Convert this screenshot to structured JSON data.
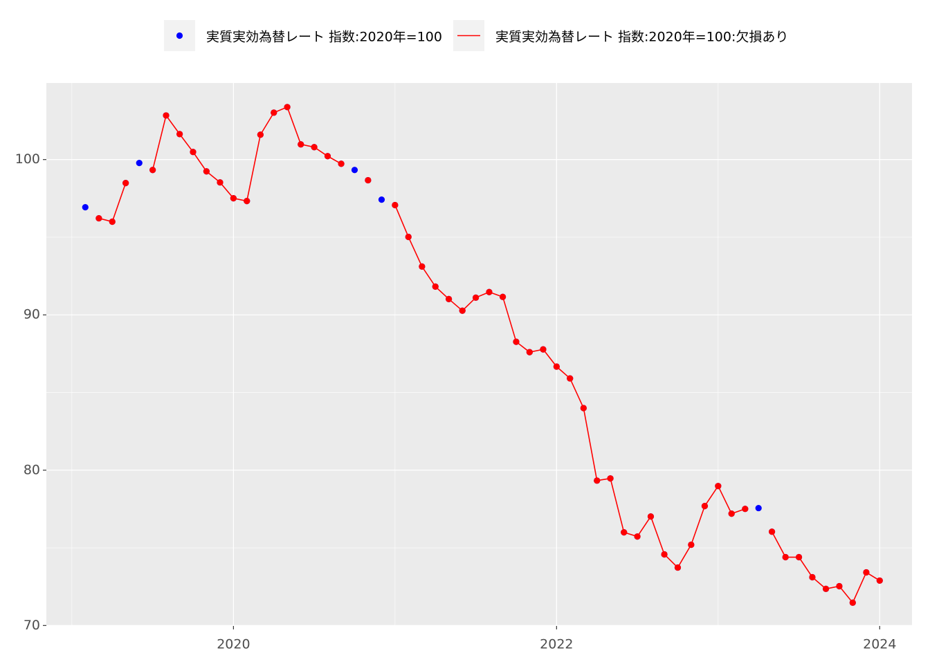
{
  "chart_data": {
    "type": "line",
    "x": [
      2019.083,
      2019.167,
      2019.25,
      2019.333,
      2019.417,
      2019.5,
      2019.583,
      2019.667,
      2019.75,
      2019.833,
      2019.917,
      2020,
      2020.083,
      2020.167,
      2020.25,
      2020.333,
      2020.417,
      2020.5,
      2020.583,
      2020.667,
      2020.75,
      2020.833,
      2020.917,
      2021,
      2021.083,
      2021.167,
      2021.25,
      2021.333,
      2021.417,
      2021.5,
      2021.583,
      2021.667,
      2021.75,
      2021.833,
      2021.917,
      2022,
      2022.083,
      2022.167,
      2022.25,
      2022.333,
      2022.417,
      2022.5,
      2022.583,
      2022.667,
      2022.75,
      2022.833,
      2022.917,
      2023,
      2023.083,
      2023.167,
      2023.25,
      2023.333,
      2023.417,
      2023.5,
      2023.583,
      2023.667,
      2023.75,
      2023.833,
      2023.917,
      2024
    ],
    "series": [
      {
        "name": "実質実効為替レート 指数:2020年=100",
        "color": "#0000ff",
        "mode": "markers",
        "values": [
          96.93,
          96.22,
          96.0,
          98.49,
          99.78,
          99.33,
          102.84,
          101.64,
          100.49,
          99.24,
          98.53,
          97.51,
          97.33,
          101.6,
          103.02,
          103.38,
          100.98,
          100.8,
          100.22,
          99.73,
          99.33,
          98.67,
          97.42,
          97.07,
          95.02,
          93.11,
          91.82,
          91.02,
          90.27,
          91.11,
          91.47,
          91.16,
          88.27,
          87.6,
          87.78,
          86.67,
          85.91,
          84.0,
          79.33,
          79.47,
          76.0,
          75.73,
          77.02,
          74.58,
          73.73,
          75.2,
          77.69,
          78.98,
          77.2,
          77.51,
          77.56,
          76.04,
          74.4,
          74.4,
          73.11,
          72.36,
          72.53,
          71.47,
          73.42,
          72.89
        ]
      },
      {
        "name": "実質実効為替レート 指数:2020年=100:欠損あり",
        "color": "#ff0000",
        "mode": "lines+markers",
        "values": [
          null,
          96.22,
          96.0,
          98.49,
          null,
          99.33,
          102.84,
          101.64,
          100.49,
          99.24,
          98.53,
          97.51,
          97.33,
          101.6,
          103.02,
          103.38,
          100.98,
          100.8,
          100.22,
          99.73,
          null,
          98.67,
          null,
          97.07,
          95.02,
          93.11,
          91.82,
          91.02,
          90.27,
          91.11,
          91.47,
          91.16,
          88.27,
          87.6,
          87.78,
          86.67,
          85.91,
          84.0,
          79.33,
          79.47,
          76.0,
          75.73,
          77.02,
          74.58,
          73.73,
          75.2,
          77.69,
          78.98,
          77.2,
          77.51,
          null,
          76.04,
          74.4,
          74.4,
          73.11,
          72.36,
          72.53,
          71.47,
          73.42,
          72.89
        ]
      }
    ],
    "xlim": [
      2018.842,
      2024.2
    ],
    "xticks": [
      2020,
      2022,
      2024
    ],
    "xminorticks": [
      2019,
      2021,
      2023
    ],
    "ylim": [
      69.97,
      104.93
    ],
    "yticks": [
      70,
      80,
      90,
      100
    ],
    "yminorticks": [
      75,
      85,
      95
    ],
    "grid": true,
    "legend": "top"
  }
}
